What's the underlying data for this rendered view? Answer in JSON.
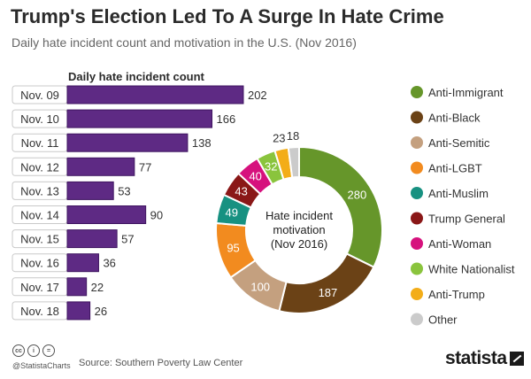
{
  "header": {
    "title": "Trump's Election Led To A Surge In Hate Crime",
    "subtitle": "Daily hate incident count and motivation in the U.S. (Nov 2016)"
  },
  "footer": {
    "handle": "@StatistaCharts",
    "source": "Source: Southern Poverty Law Center",
    "brand": "statista",
    "license_icons": [
      "cc",
      "i",
      "="
    ]
  },
  "chart_data": [
    {
      "type": "bar",
      "orientation": "horizontal",
      "title": "Daily hate incident count",
      "categories": [
        "Nov. 09",
        "Nov. 10",
        "Nov. 11",
        "Nov. 12",
        "Nov. 13",
        "Nov. 14",
        "Nov. 15",
        "Nov. 16",
        "Nov. 17",
        "Nov. 18"
      ],
      "values": [
        202,
        166,
        138,
        77,
        53,
        90,
        57,
        36,
        22,
        26
      ],
      "color": "#5e2a84"
    },
    {
      "type": "pie",
      "donut": true,
      "center_label": [
        "Hate incident",
        "motivation",
        "(Nov 2016)"
      ],
      "labels": [
        "Anti-Immigrant",
        "Anti-Black",
        "Anti-Semitic",
        "Anti-LGBT",
        "Anti-Muslim",
        "Trump General",
        "Anti-Woman",
        "White Nationalist",
        "Anti-Trump",
        "Other"
      ],
      "values": [
        280,
        187,
        100,
        95,
        49,
        43,
        40,
        32,
        23,
        18
      ],
      "colors": [
        "#66962a",
        "#6b4216",
        "#c4a07f",
        "#f28b1f",
        "#179181",
        "#8a1717",
        "#d6117d",
        "#8ac43d",
        "#f3ad18",
        "#cbcbcb"
      ],
      "legend_position": "right"
    }
  ]
}
